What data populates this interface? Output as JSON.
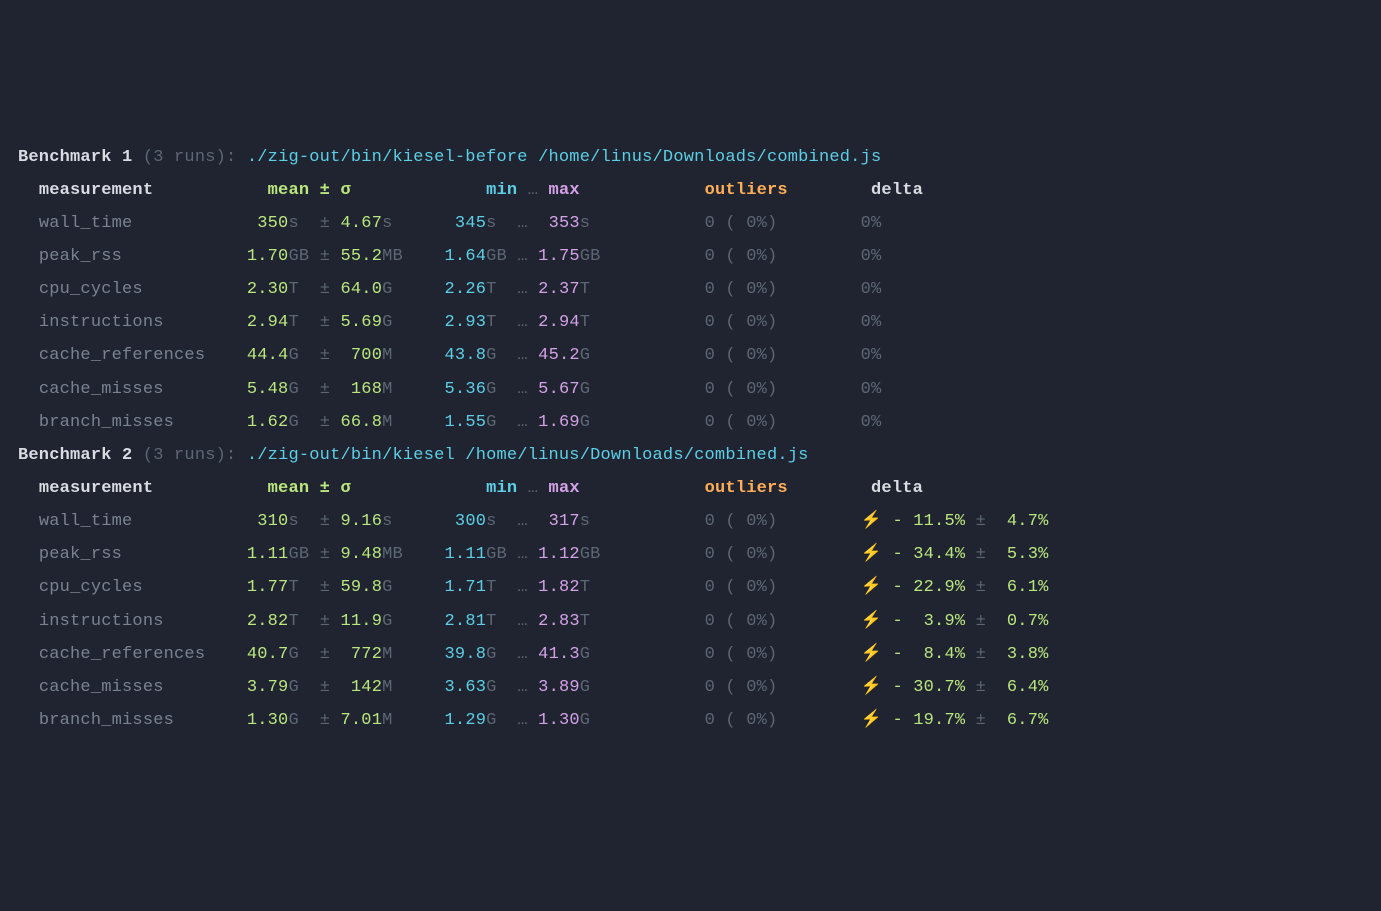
{
  "colors": {
    "background": "#1f2430",
    "text": "#cbccc6",
    "dim": "#5c6773",
    "white": "#d9dce2",
    "gray": "#7a8291",
    "green": "#bae67e",
    "cyan": "#5ccfe6",
    "magenta": "#d4a1e7",
    "orange": "#ffae57",
    "yellow": "#ffd580"
  },
  "header_labels": {
    "measurement": "measurement",
    "mean": "mean",
    "pm": "±",
    "sigma": "σ",
    "min": "min",
    "ellipsis": "…",
    "max": "max",
    "outliers": "outliers",
    "delta": "delta"
  },
  "benchmarks": [
    {
      "title_prefix": "Benchmark 1",
      "runs_text": "(3 runs)",
      "colon": ":",
      "command": "./zig-out/bin/kiesel-before /home/linus/Downloads/combined.js",
      "rows": [
        {
          "name": "wall_time",
          "mean_v": "350",
          "mean_u": "s ",
          "sd_v": "4.67",
          "sd_u": "s ",
          "min_v": "345",
          "min_u": "s ",
          "max_v": "353",
          "max_u": "s ",
          "out_n": "0",
          "out_p": "0%",
          "delta_plain": "0%",
          "has_delta_pct": false
        },
        {
          "name": "peak_rss",
          "mean_v": "1.70",
          "mean_u": "GB",
          "sd_v": "55.2",
          "sd_u": "MB",
          "min_v": "1.64",
          "min_u": "GB",
          "max_v": "1.75",
          "max_u": "GB",
          "out_n": "0",
          "out_p": "0%",
          "delta_plain": "0%",
          "has_delta_pct": false
        },
        {
          "name": "cpu_cycles",
          "mean_v": "2.30",
          "mean_u": "T ",
          "sd_v": "64.0",
          "sd_u": "G ",
          "min_v": "2.26",
          "min_u": "T ",
          "max_v": "2.37",
          "max_u": "T ",
          "out_n": "0",
          "out_p": "0%",
          "delta_plain": "0%",
          "has_delta_pct": false
        },
        {
          "name": "instructions",
          "mean_v": "2.94",
          "mean_u": "T ",
          "sd_v": "5.69",
          "sd_u": "G ",
          "min_v": "2.93",
          "min_u": "T ",
          "max_v": "2.94",
          "max_u": "T ",
          "out_n": "0",
          "out_p": "0%",
          "delta_plain": "0%",
          "has_delta_pct": false
        },
        {
          "name": "cache_references",
          "mean_v": "44.4",
          "mean_u": "G ",
          "sd_v": "700",
          "sd_u": "M ",
          "min_v": "43.8",
          "min_u": "G ",
          "max_v": "45.2",
          "max_u": "G ",
          "out_n": "0",
          "out_p": "0%",
          "delta_plain": "0%",
          "has_delta_pct": false
        },
        {
          "name": "cache_misses",
          "mean_v": "5.48",
          "mean_u": "G ",
          "sd_v": "168",
          "sd_u": "M ",
          "min_v": "5.36",
          "min_u": "G ",
          "max_v": "5.67",
          "max_u": "G ",
          "out_n": "0",
          "out_p": "0%",
          "delta_plain": "0%",
          "has_delta_pct": false
        },
        {
          "name": "branch_misses",
          "mean_v": "1.62",
          "mean_u": "G ",
          "sd_v": "66.8",
          "sd_u": "M ",
          "min_v": "1.55",
          "min_u": "G ",
          "max_v": "1.69",
          "max_u": "G ",
          "out_n": "0",
          "out_p": "0%",
          "delta_plain": "0%",
          "has_delta_pct": false
        }
      ]
    },
    {
      "title_prefix": "Benchmark 2",
      "runs_text": "(3 runs)",
      "colon": ":",
      "command": "./zig-out/bin/kiesel /home/linus/Downloads/combined.js",
      "rows": [
        {
          "name": "wall_time",
          "mean_v": "310",
          "mean_u": "s ",
          "sd_v": "9.16",
          "sd_u": "s ",
          "min_v": "300",
          "min_u": "s ",
          "max_v": "317",
          "max_u": "s ",
          "out_n": "0",
          "out_p": "0%",
          "has_delta_pct": true,
          "flash": "⚡",
          "sign": "-",
          "pct": "11.5%",
          "pm": "±",
          "err": "4.7%"
        },
        {
          "name": "peak_rss",
          "mean_v": "1.11",
          "mean_u": "GB",
          "sd_v": "9.48",
          "sd_u": "MB",
          "min_v": "1.11",
          "min_u": "GB",
          "max_v": "1.12",
          "max_u": "GB",
          "out_n": "0",
          "out_p": "0%",
          "has_delta_pct": true,
          "flash": "⚡",
          "sign": "-",
          "pct": "34.4%",
          "pm": "±",
          "err": "5.3%"
        },
        {
          "name": "cpu_cycles",
          "mean_v": "1.77",
          "mean_u": "T ",
          "sd_v": "59.8",
          "sd_u": "G ",
          "min_v": "1.71",
          "min_u": "T ",
          "max_v": "1.82",
          "max_u": "T ",
          "out_n": "0",
          "out_p": "0%",
          "has_delta_pct": true,
          "flash": "⚡",
          "sign": "-",
          "pct": "22.9%",
          "pm": "±",
          "err": "6.1%"
        },
        {
          "name": "instructions",
          "mean_v": "2.82",
          "mean_u": "T ",
          "sd_v": "11.9",
          "sd_u": "G ",
          "min_v": "2.81",
          "min_u": "T ",
          "max_v": "2.83",
          "max_u": "T ",
          "out_n": "0",
          "out_p": "0%",
          "has_delta_pct": true,
          "flash": "⚡",
          "sign": "-",
          "pct": "3.9%",
          "pm": "±",
          "err": "0.7%"
        },
        {
          "name": "cache_references",
          "mean_v": "40.7",
          "mean_u": "G ",
          "sd_v": "772",
          "sd_u": "M ",
          "min_v": "39.8",
          "min_u": "G ",
          "max_v": "41.3",
          "max_u": "G ",
          "out_n": "0",
          "out_p": "0%",
          "has_delta_pct": true,
          "flash": "⚡",
          "sign": "-",
          "pct": "8.4%",
          "pm": "±",
          "err": "3.8%"
        },
        {
          "name": "cache_misses",
          "mean_v": "3.79",
          "mean_u": "G ",
          "sd_v": "142",
          "sd_u": "M ",
          "min_v": "3.63",
          "min_u": "G ",
          "max_v": "3.89",
          "max_u": "G ",
          "out_n": "0",
          "out_p": "0%",
          "has_delta_pct": true,
          "flash": "⚡",
          "sign": "-",
          "pct": "30.7%",
          "pm": "±",
          "err": "6.4%"
        },
        {
          "name": "branch_misses",
          "mean_v": "1.30",
          "mean_u": "G ",
          "sd_v": "7.01",
          "sd_u": "M ",
          "min_v": "1.29",
          "min_u": "G ",
          "max_v": "1.30",
          "max_u": "G ",
          "out_n": "0",
          "out_p": "0%",
          "has_delta_pct": true,
          "flash": "⚡",
          "sign": "-",
          "pct": "19.7%",
          "pm": "±",
          "err": "6.7%"
        }
      ]
    }
  ]
}
